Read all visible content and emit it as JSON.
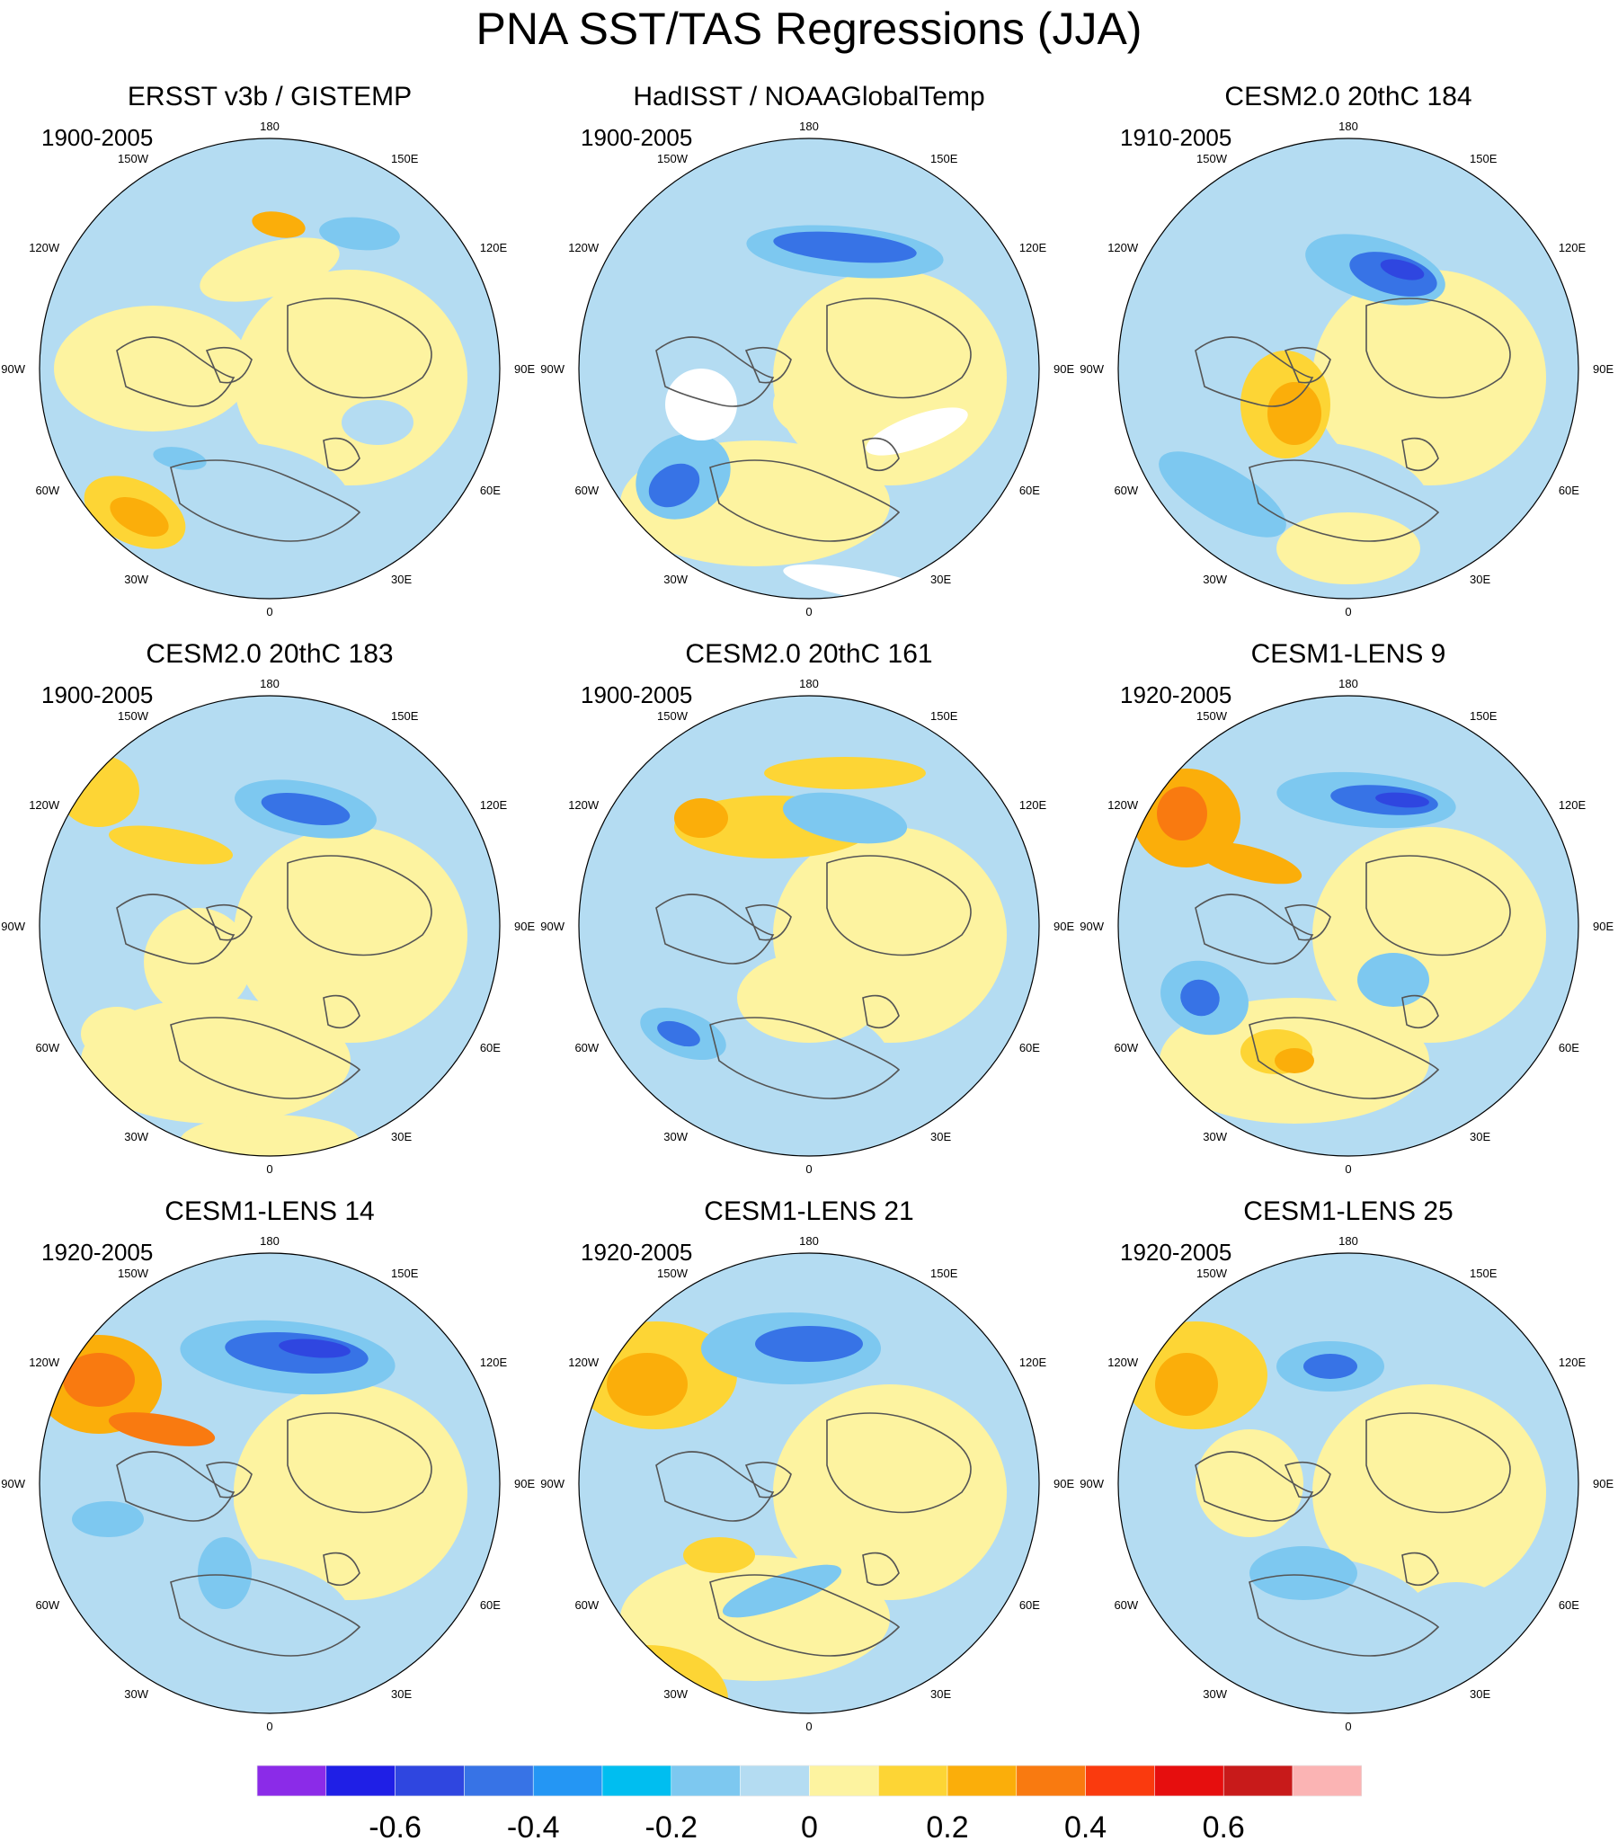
{
  "title": "PNA SST/TAS Regressions (JJA)",
  "longitude_labels": {
    "top": "180",
    "bottom": "0",
    "left_mid": "90W",
    "right_mid": "90E",
    "upper_left": "150W",
    "upper_right": "150E",
    "upper_left2": "120W",
    "upper_right2": "120E",
    "lower_left": "60W",
    "lower_right": "60E",
    "lower_left2": "30W",
    "lower_right2": "30E"
  },
  "panels": [
    {
      "title": "ERSST v3b / GISTEMP",
      "period": "1900-2005"
    },
    {
      "title": "HadISST / NOAAGlobalTemp",
      "period": "1900-2005"
    },
    {
      "title": "CESM2.0 20thC 184",
      "period": "1910-2005"
    },
    {
      "title": "CESM2.0 20thC 183",
      "period": "1900-2005"
    },
    {
      "title": "CESM2.0 20thC 161",
      "period": "1900-2005"
    },
    {
      "title": "CESM1-LENS 9",
      "period": "1920-2005"
    },
    {
      "title": "CESM1-LENS 14",
      "period": "1920-2005"
    },
    {
      "title": "CESM1-LENS 21",
      "period": "1920-2005"
    },
    {
      "title": "CESM1-LENS 25",
      "period": "1920-2005"
    }
  ],
  "colorbar": {
    "colors": [
      "#8b2be8",
      "#1f1fe6",
      "#2f46e0",
      "#3773e6",
      "#2496f4",
      "#00bef0",
      "#7dc8f0",
      "#b4dcf2",
      "#fdf3a0",
      "#fdd535",
      "#fbae0a",
      "#f97a10",
      "#fa3a0e",
      "#e60e0e",
      "#c81a1a",
      "#fbb4b4"
    ],
    "tick_labels": [
      "-0.6",
      "-0.4",
      "-0.2",
      "0",
      "0.2",
      "0.4",
      "0.6"
    ]
  },
  "colors": {
    "neg_weak": "#b4dcf2",
    "neg_mod": "#7dc8f0",
    "neg_strong": "#3773e6",
    "neg_max": "#2f46e0",
    "pos_weak": "#fdf3a0",
    "pos_mod": "#fdd535",
    "pos_strong": "#fbae0a",
    "pos_max": "#f97a10",
    "missing": "#ffffff",
    "coast": "#555555"
  }
}
